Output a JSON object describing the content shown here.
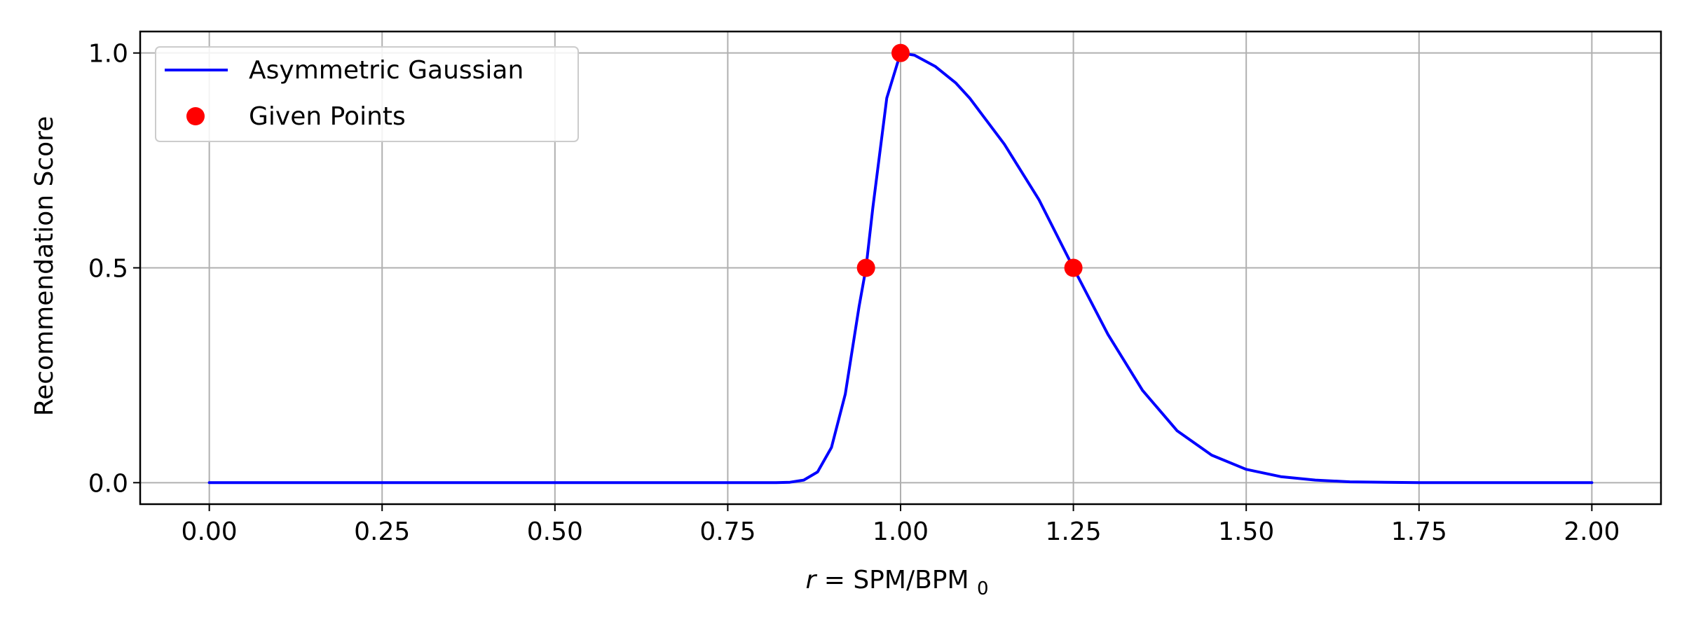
{
  "chart_data": {
    "type": "line",
    "title": "",
    "xlabel": {
      "var": "r",
      "rhs": "SPM/BPM",
      "subscript": "0"
    },
    "ylabel": "Recommendation Score",
    "xlim": [
      -0.1,
      2.1
    ],
    "ylim": [
      -0.05,
      1.05
    ],
    "xticks": [
      0.0,
      0.25,
      0.5,
      0.75,
      1.0,
      1.25,
      1.5,
      1.75,
      2.0
    ],
    "xtick_labels": [
      "0.00",
      "0.25",
      "0.50",
      "0.75",
      "1.00",
      "1.25",
      "1.50",
      "1.75",
      "2.00"
    ],
    "yticks": [
      0.0,
      0.5,
      1.0
    ],
    "ytick_labels": [
      "0.0",
      "0.5",
      "1.0"
    ],
    "grid": true,
    "legend_position": "top-left",
    "series": [
      {
        "name": "Asymmetric Gaussian",
        "kind": "line",
        "color": "#0000ff",
        "x": [
          0.0,
          0.1,
          0.2,
          0.3,
          0.4,
          0.5,
          0.6,
          0.7,
          0.8,
          0.82,
          0.84,
          0.86,
          0.88,
          0.9,
          0.92,
          0.94,
          0.95,
          0.96,
          0.98,
          1.0,
          1.02,
          1.05,
          1.08,
          1.1,
          1.15,
          1.2,
          1.25,
          1.3,
          1.35,
          1.4,
          1.45,
          1.5,
          1.55,
          1.6,
          1.65,
          1.7,
          1.75,
          1.8,
          1.85,
          1.9,
          1.95,
          2.0
        ],
        "y": [
          0.0,
          0.0,
          0.0,
          0.0,
          0.0,
          0.0,
          0.0,
          0.0,
          0.0,
          0.0,
          0.001,
          0.006,
          0.025,
          0.082,
          0.206,
          0.41,
          0.5,
          0.641,
          0.895,
          1.0,
          0.995,
          0.969,
          0.93,
          0.895,
          0.788,
          0.659,
          0.5,
          0.345,
          0.215,
          0.121,
          0.064,
          0.031,
          0.014,
          0.006,
          0.002,
          0.001,
          0.0,
          0.0,
          0.0,
          0.0,
          0.0,
          0.0
        ]
      },
      {
        "name": "Given Points",
        "kind": "scatter",
        "color": "#ff0000",
        "x": [
          0.95,
          1.0,
          1.25
        ],
        "y": [
          0.5,
          1.0,
          0.5
        ]
      }
    ]
  }
}
